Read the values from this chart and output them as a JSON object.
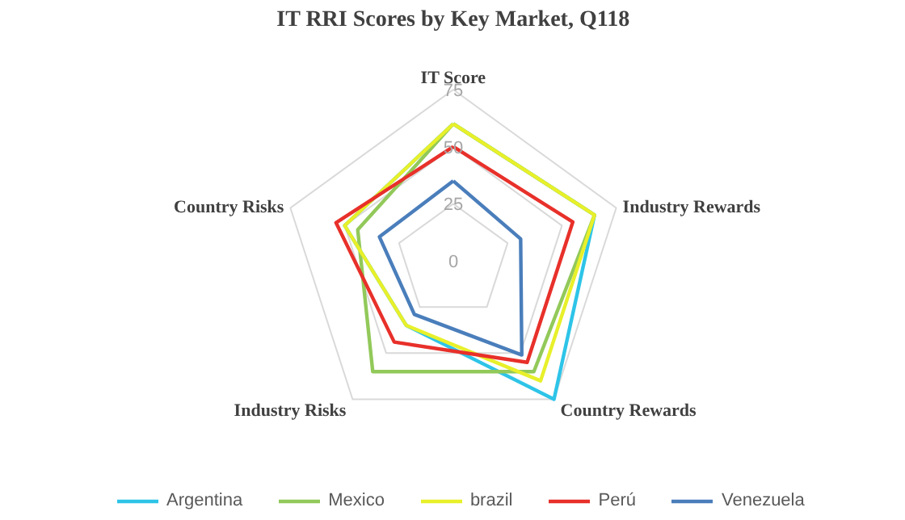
{
  "chart_data": {
    "type": "radar",
    "title": "IT RRI Scores by Key Market, Q118",
    "categories": [
      "IT Score",
      "Industry Rewards",
      "Country Rewards",
      "Industry Risks",
      "Country Risks"
    ],
    "ylim": [
      0,
      75
    ],
    "yticks": [
      0,
      25,
      50,
      75
    ],
    "legend": "bottom",
    "grid": true,
    "series": [
      {
        "name": "Argentina",
        "color": "#2ec4e8",
        "values": [
          60,
          65,
          75,
          35,
          50
        ]
      },
      {
        "name": "Mexico",
        "color": "#92c95a",
        "values": [
          60,
          65,
          60,
          60,
          44
        ]
      },
      {
        "name": "brazil",
        "color": "#e8f02a",
        "values": [
          60,
          65,
          65,
          35,
          50
        ]
      },
      {
        "name": "Perú",
        "color": "#e8302a",
        "values": [
          50,
          55,
          55,
          44,
          54
        ]
      },
      {
        "name": "Venezuela",
        "color": "#4a7ebb",
        "values": [
          35,
          31,
          51,
          29,
          34
        ]
      }
    ]
  }
}
